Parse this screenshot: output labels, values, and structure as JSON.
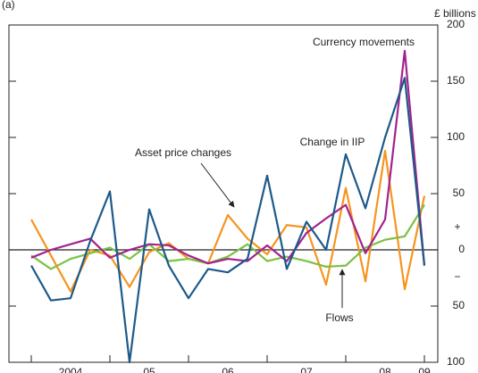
{
  "chart_data": {
    "type": "line",
    "title": "(a)",
    "y_unit": "£ billions",
    "categories": [
      null,
      null,
      "2004",
      null,
      null,
      null,
      "05",
      null,
      null,
      null,
      "06",
      null,
      null,
      null,
      "07",
      null,
      null,
      null,
      "08",
      null,
      "09"
    ],
    "series": [
      {
        "name": "Change in IIP",
        "color": "#1d5a8a",
        "values": [
          -14,
          -45,
          -43,
          8,
          52,
          -100,
          36,
          -14,
          -43,
          -17,
          -20,
          -8,
          66,
          -17,
          25,
          0,
          85,
          37,
          100,
          153,
          -14
        ]
      },
      {
        "name": "Currency movements",
        "color": "#a3238e",
        "values": [
          -7,
          0,
          5,
          10,
          -7,
          0,
          5,
          4,
          -5,
          -12,
          -8,
          -10,
          4,
          -10,
          15,
          28,
          40,
          -3,
          27,
          177,
          -14
        ]
      },
      {
        "name": "Asset price changes",
        "color": "#f7941d",
        "values": [
          27,
          -5,
          -37,
          0,
          -5,
          -33,
          -2,
          6,
          -8,
          -12,
          31,
          10,
          -4,
          22,
          20,
          -31,
          55,
          -28,
          88,
          -35,
          48
        ]
      },
      {
        "name": "Flows",
        "color": "#7ac143",
        "values": [
          -5,
          -17,
          -8,
          -3,
          2,
          -8,
          5,
          -10,
          -8,
          -12,
          -6,
          5,
          -10,
          -6,
          -10,
          -15,
          -14,
          2,
          9,
          12,
          40
        ]
      }
    ],
    "annotations": [
      "+",
      "−"
    ],
    "ylim": [
      -100,
      200
    ],
    "yticks": [
      {
        "value": -100,
        "label": "100"
      },
      {
        "value": -50,
        "label": "50"
      },
      0,
      50,
      100,
      150,
      200
    ]
  }
}
